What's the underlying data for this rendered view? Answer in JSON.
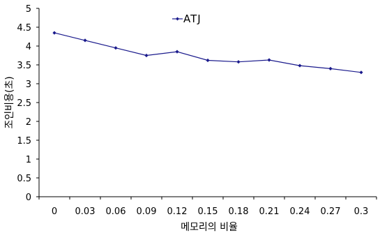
{
  "chart_data": {
    "type": "line",
    "title": "",
    "xlabel": "메모리의 비율",
    "ylabel": "조인비용(초)",
    "categories": [
      "0",
      "0.03",
      "0.06",
      "0.09",
      "0.12",
      "0.15",
      "0.18",
      "0.21",
      "0.24",
      "0.27",
      "0.3"
    ],
    "series": [
      {
        "name": "ATJ",
        "color": "#1a1a8c",
        "marker": "diamond",
        "values": [
          4.35,
          4.15,
          3.95,
          3.75,
          3.85,
          3.62,
          3.58,
          3.63,
          3.48,
          3.4,
          3.3
        ]
      }
    ],
    "ylim": [
      0,
      5
    ],
    "yticks": [
      "0",
      "0.5",
      "1",
      "1.5",
      "2",
      "2.5",
      "3",
      "3.5",
      "4",
      "4.5",
      "5"
    ],
    "grid": false,
    "legend": "top-center"
  }
}
